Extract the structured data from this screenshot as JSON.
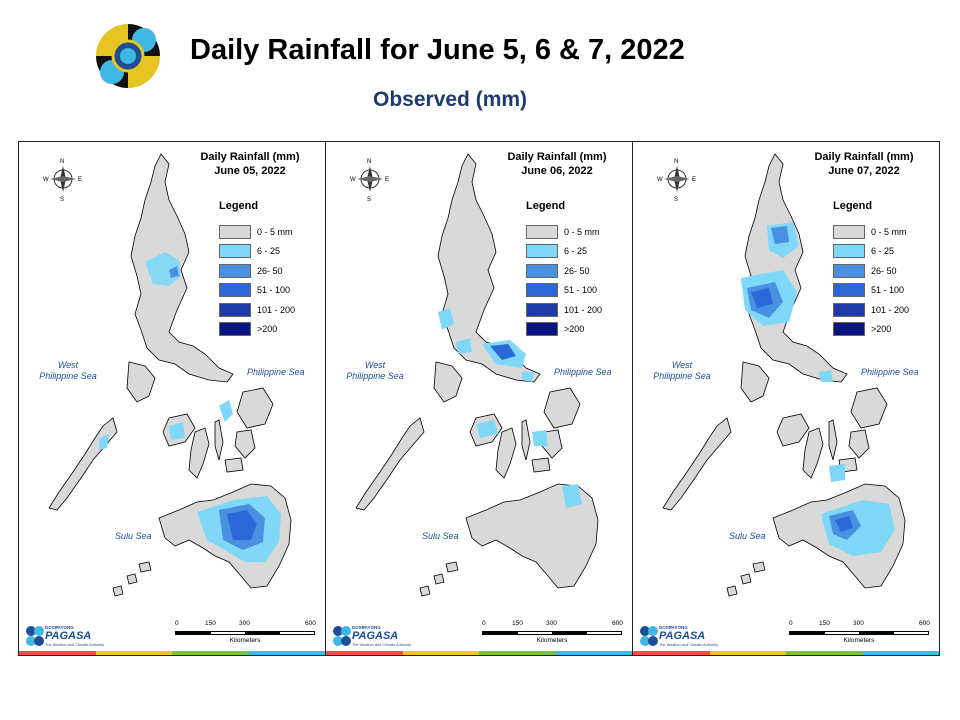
{
  "header": {
    "title": "Daily Rainfall for June 5, 6 & 7, 2022",
    "subtitle": "Observed (mm)"
  },
  "legend": {
    "title": "Legend",
    "classes": [
      {
        "label": "0 - 5 mm",
        "color": "#d9d9d9"
      },
      {
        "label": "6 - 25",
        "color": "#7fd8f7"
      },
      {
        "label": "26- 50",
        "color": "#4a90e0"
      },
      {
        "label": "51 - 100",
        "color": "#2b67d6"
      },
      {
        "label": "101 - 200",
        "color": "#1e3aa8"
      },
      {
        "label": ">200",
        "color": "#0a1480"
      }
    ]
  },
  "compass": {
    "n": "N",
    "s": "S",
    "e": "E",
    "w": "W"
  },
  "seas": {
    "west": [
      "West",
      "Philippine Sea"
    ],
    "east": "Philippine Sea",
    "sulu": "Sulu Sea"
  },
  "scale": {
    "ticks": [
      "0",
      "150",
      "300",
      "600"
    ],
    "unit": "Kilometers"
  },
  "brand": {
    "dost": "DOST",
    "payong": "PAYONG",
    "name": "PAGASA",
    "tagline": "The Weather and Climate Authority"
  },
  "panels": [
    {
      "title_line1": "Daily Rainfall (mm)",
      "title_line2": "June 05, 2022"
    },
    {
      "title_line1": "Daily Rainfall (mm)",
      "title_line2": "June 06, 2022"
    },
    {
      "title_line1": "Daily Rainfall (mm)",
      "title_line2": "June 07, 2022"
    }
  ]
}
